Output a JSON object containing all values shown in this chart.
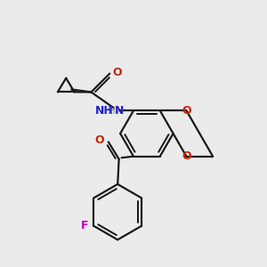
{
  "background_color": "#ebebeb",
  "bond_color": "#1a1a1a",
  "N_color": "#2222cc",
  "O_color": "#cc2200",
  "F_color": "#bb00bb",
  "H_color": "#666666",
  "line_width": 1.6,
  "figsize": [
    3.0,
    3.0
  ],
  "dpi": 100,
  "xlim": [
    0,
    10
  ],
  "ylim": [
    0,
    10
  ]
}
